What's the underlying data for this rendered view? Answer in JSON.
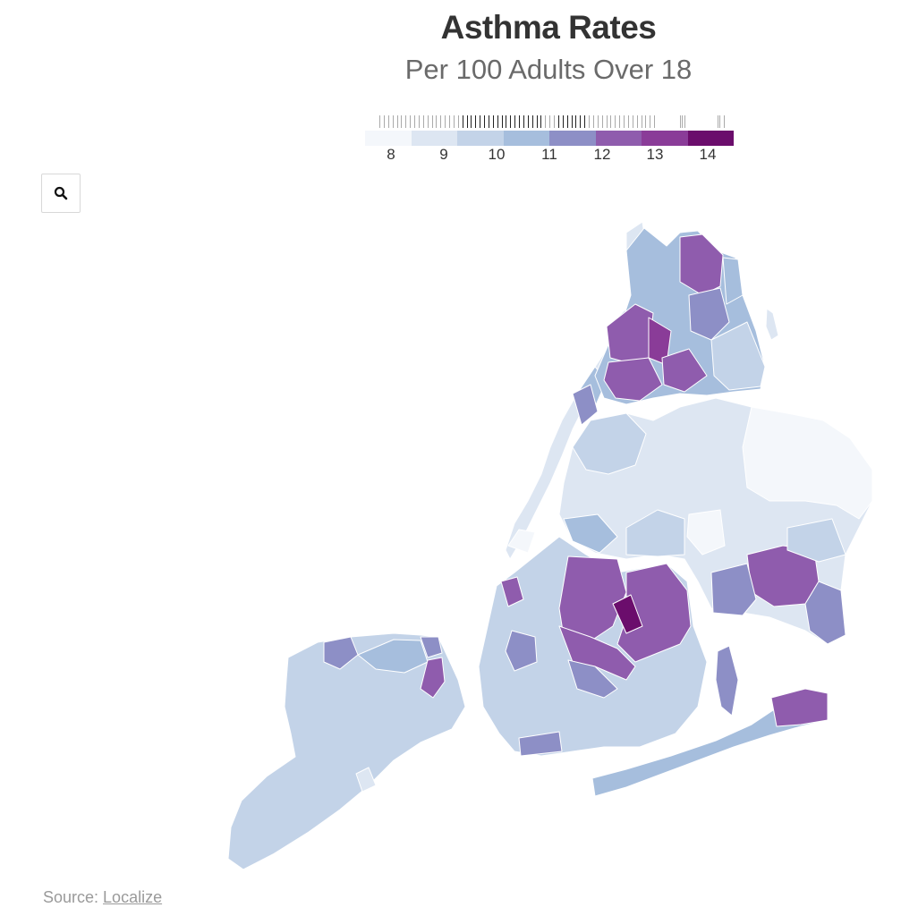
{
  "header": {
    "title": "Asthma Rates",
    "subtitle": "Per 100 Adults Over 18"
  },
  "legend": {
    "labels": [
      "8",
      "9",
      "10",
      "11",
      "12",
      "13",
      "14"
    ],
    "colors": [
      "#f4f7fb",
      "#dde6f2",
      "#c3d3e8",
      "#a6bedd",
      "#8d8fc6",
      "#8f5cad",
      "#8a3c98",
      "#6b0d6c"
    ]
  },
  "search": {
    "icon": "search-icon"
  },
  "source": {
    "prefix": "Source: ",
    "link_text": "Localize"
  },
  "colors": {
    "c8": "#f4f7fb",
    "c9": "#dde6f2",
    "c10": "#c3d3e8",
    "c11": "#a6bedd",
    "c12": "#8d8fc6",
    "c13": "#8f5cad",
    "c14": "#6b0d6c",
    "border": "#ffffff"
  }
}
